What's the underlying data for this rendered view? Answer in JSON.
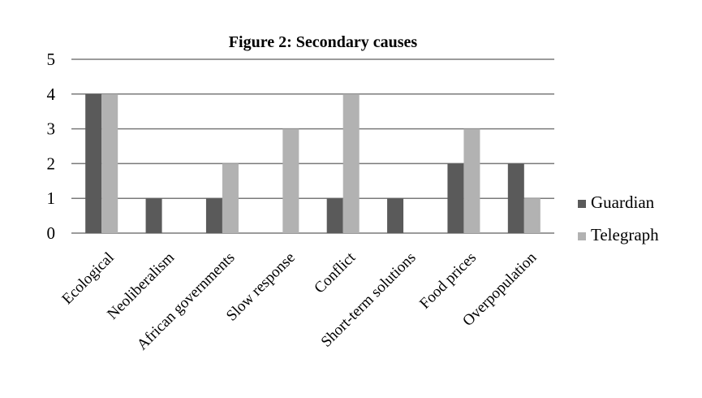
{
  "chart_data": {
    "type": "bar",
    "title": "Figure 2: Secondary causes",
    "xlabel": "",
    "ylabel": "",
    "ylim": [
      0,
      5
    ],
    "yticks": [
      0,
      1,
      2,
      3,
      4,
      5
    ],
    "grid": true,
    "legend_position": "right",
    "categories": [
      "Ecological",
      "Neoliberalism",
      "African governments",
      "Slow response",
      "Conflict",
      "Short-term solutions",
      "Food prices",
      "Overpopulation"
    ],
    "series": [
      {
        "name": "Guardian",
        "color": "#5a5a5a",
        "values": [
          4,
          1,
          1,
          0,
          1,
          1,
          2,
          2
        ]
      },
      {
        "name": "Telegraph",
        "color": "#b2b2b2",
        "values": [
          4,
          0,
          2,
          3,
          4,
          0,
          3,
          1
        ]
      }
    ]
  }
}
